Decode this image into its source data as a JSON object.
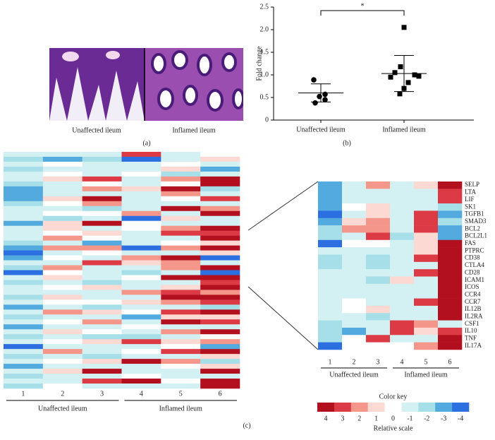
{
  "panel_a": {
    "label": "(a)",
    "images": [
      "Unaffected ileum",
      "Inflamed ileum"
    ]
  },
  "chart_data": [
    {
      "type": "dotplot",
      "label": "(b)",
      "ylabel": "Fold change",
      "annotation": "*",
      "categories": [
        "Unaffected ileum",
        "Inflamed ileum"
      ],
      "ylim": [
        0,
        2.5
      ],
      "yticks": [
        0,
        {
          "value": 0.5,
          "label": "0.5"
        },
        {
          "value": 1,
          "label": "1.0"
        },
        {
          "value": 1.5,
          "label": "1.5"
        },
        {
          "value": 2,
          "label": "2.0"
        },
        {
          "value": 2.5,
          "label": "2.5"
        }
      ],
      "groups": [
        {
          "marker": "circle",
          "values": [
            0.89,
            0.57,
            0.52,
            0.45,
            0.38
          ],
          "mean": 0.6,
          "error": 0.2
        },
        {
          "marker": "square",
          "values": [
            2.05,
            1.18,
            1.05,
            1.0,
            0.97,
            0.95,
            0.83,
            0.7,
            0.58
          ],
          "mean": 1.03,
          "error": 0.4
        }
      ]
    },
    {
      "type": "heatmap",
      "label": "(c)",
      "columns": [
        "1",
        "2",
        "3",
        "4",
        "5",
        "6"
      ],
      "groups": [
        "Unaffected ileum",
        "Inflamed ileum"
      ],
      "rows": [
        null,
        null,
        null,
        null,
        null,
        null,
        null,
        null,
        null,
        null,
        null,
        null,
        null,
        null,
        null,
        null,
        null,
        null,
        null,
        null,
        null,
        null,
        null,
        null,
        null,
        null,
        null,
        null,
        null,
        null,
        null,
        null,
        null,
        null,
        null,
        null,
        null,
        null,
        null,
        null,
        null,
        null,
        null,
        null,
        null,
        null,
        null,
        null
      ],
      "values": [
        [
          -1,
          -1,
          -1,
          3,
          -1,
          0
        ],
        [
          -2,
          -3,
          -2,
          -4,
          -1,
          1
        ],
        [
          -1,
          0,
          -1,
          -1,
          0,
          -1
        ],
        [
          -2,
          -1,
          -1,
          -1,
          1,
          -3
        ],
        [
          -1,
          0,
          -1,
          0,
          -2,
          -1
        ],
        [
          -1,
          1,
          3,
          -1,
          2,
          4
        ],
        [
          -2,
          -1,
          0,
          -1,
          0,
          4
        ],
        [
          -3,
          -1,
          2,
          1,
          4,
          -2
        ],
        [
          -3,
          -1,
          -1,
          -1,
          2,
          -1
        ],
        [
          -3,
          1,
          4,
          -1,
          0,
          3
        ],
        [
          -2,
          0,
          2,
          -1,
          -1,
          -1
        ],
        [
          -1,
          -1,
          -2,
          -1,
          4,
          2
        ],
        [
          -1,
          0,
          0,
          2,
          -1,
          4
        ],
        [
          -1,
          -2,
          -1,
          -4,
          1,
          -1
        ],
        [
          -3,
          1,
          4,
          0,
          -1,
          -1
        ],
        [
          -1,
          1,
          -1,
          0,
          2,
          4
        ],
        [
          -1,
          0,
          1,
          -1,
          3,
          3
        ],
        [
          -1,
          2,
          0,
          -1,
          -1,
          4
        ],
        [
          -2,
          -1,
          -3,
          -1,
          0,
          1
        ],
        [
          -3,
          2,
          2,
          -4,
          2,
          4
        ],
        [
          -4,
          -1,
          0,
          -1,
          -1,
          1
        ],
        [
          -3,
          0,
          -1,
          2,
          4,
          -4
        ],
        [
          -1,
          -1,
          3,
          1,
          2,
          -1
        ],
        [
          -2,
          2,
          -1,
          -1,
          2,
          4
        ],
        [
          -4,
          0,
          -1,
          -2,
          -1,
          -4
        ],
        [
          -1,
          1,
          -1,
          0,
          4,
          4
        ],
        [
          -2,
          -1,
          -2,
          -1,
          -1,
          3
        ],
        [
          -1,
          0,
          1,
          -1,
          1,
          4
        ],
        [
          -1,
          -1,
          -1,
          2,
          3,
          2
        ],
        [
          -2,
          1,
          -1,
          -1,
          4,
          4
        ],
        [
          -1,
          0,
          0,
          1,
          2,
          3
        ],
        [
          -3,
          -1,
          -2,
          -1,
          -1,
          -2
        ],
        [
          -1,
          2,
          1,
          0,
          3,
          4
        ],
        [
          -2,
          -1,
          -1,
          -3,
          1,
          1
        ],
        [
          -1,
          0,
          2,
          -1,
          4,
          3
        ],
        [
          -3,
          -1,
          -1,
          0,
          -1,
          -1
        ],
        [
          -1,
          1,
          0,
          -1,
          2,
          4
        ],
        [
          -2,
          -1,
          -2,
          -2,
          -1,
          0
        ],
        [
          -1,
          0,
          1,
          3,
          1,
          2
        ],
        [
          -4,
          -1,
          -1,
          -1,
          0,
          -3
        ],
        [
          -1,
          2,
          -1,
          0,
          3,
          4
        ],
        [
          -2,
          -1,
          -2,
          -1,
          -1,
          1
        ],
        [
          -1,
          0,
          1,
          4,
          2,
          -2
        ],
        [
          -3,
          -1,
          -1,
          -1,
          0,
          1
        ],
        [
          -1,
          1,
          4,
          -1,
          -1,
          4
        ],
        [
          -2,
          -1,
          -1,
          0,
          -1,
          -1
        ],
        [
          -1,
          -1,
          3,
          4,
          0,
          4
        ],
        [
          -2,
          0,
          -1,
          -1,
          -1,
          4
        ]
      ]
    },
    {
      "type": "heatmap",
      "columns": [
        "1",
        "2",
        "3",
        "4",
        "5",
        "6"
      ],
      "groups": [
        "Unaffected ileum",
        "Inflamed ileum"
      ],
      "rows": [
        "SELP",
        "LTA",
        "LIF",
        "SK1",
        "TGFB1",
        "SMAD3",
        "BCL2",
        "BCL2L1",
        "FAS",
        "PTPRC",
        "CD38",
        "CTLA4",
        "CD28",
        "ICAM1",
        "ICOS",
        "CCR4",
        "CCR7",
        "IL12B",
        "IL2RA",
        "CSF1",
        "IL10",
        "TNF",
        "IL17A"
      ],
      "values": [
        [
          -3,
          -1,
          2,
          -1,
          1,
          4
        ],
        [
          -3,
          -1,
          -1,
          -1,
          -1,
          3
        ],
        [
          -3,
          -1,
          -1,
          -1,
          -1,
          3
        ],
        [
          -3,
          0,
          1,
          -1,
          -1,
          -2
        ],
        [
          -4,
          -1,
          1,
          -1,
          3,
          -3
        ],
        [
          -3,
          1,
          2,
          -1,
          3,
          -2
        ],
        [
          -2,
          2,
          2,
          -1,
          3,
          -3
        ],
        [
          -2,
          -1,
          3,
          -2,
          1,
          -3
        ],
        [
          -4,
          0,
          0,
          -1,
          1,
          4
        ],
        [
          -1,
          -1,
          -1,
          -1,
          1,
          4
        ],
        [
          -2,
          -1,
          -2,
          -1,
          3,
          4
        ],
        [
          -2,
          -1,
          -2,
          -1,
          -1,
          4
        ],
        [
          -1,
          -1,
          -1,
          -1,
          3,
          4
        ],
        [
          -1,
          -1,
          -2,
          1,
          -1,
          4
        ],
        [
          -1,
          -1,
          -1,
          -1,
          -1,
          4
        ],
        [
          -1,
          -1,
          -1,
          -1,
          -1,
          4
        ],
        [
          -1,
          0,
          -1,
          -1,
          3,
          4
        ],
        [
          -1,
          0,
          1,
          -1,
          -1,
          4
        ],
        [
          -1,
          -1,
          -2,
          -1,
          -1,
          4
        ],
        [
          -2,
          -1,
          -1,
          3,
          2,
          -1
        ],
        [
          -2,
          -3,
          -1,
          3,
          1,
          3
        ],
        [
          -2,
          0,
          3,
          -1,
          -1,
          4
        ],
        [
          -4,
          0,
          0,
          0,
          2,
          4
        ]
      ]
    },
    {
      "type": "colorkey",
      "title": "Color key",
      "xlabel": "Relative scale",
      "values": [
        4,
        3,
        2,
        1,
        0,
        -1,
        -2,
        -3,
        -4
      ],
      "colors": [
        "#b2101f",
        "#dc3a45",
        "#f4978a",
        "#fcd9d3",
        "#ffffff",
        "#d3f1f3",
        "#a6dfe8",
        "#52aadf",
        "#2b6fe0"
      ]
    }
  ]
}
